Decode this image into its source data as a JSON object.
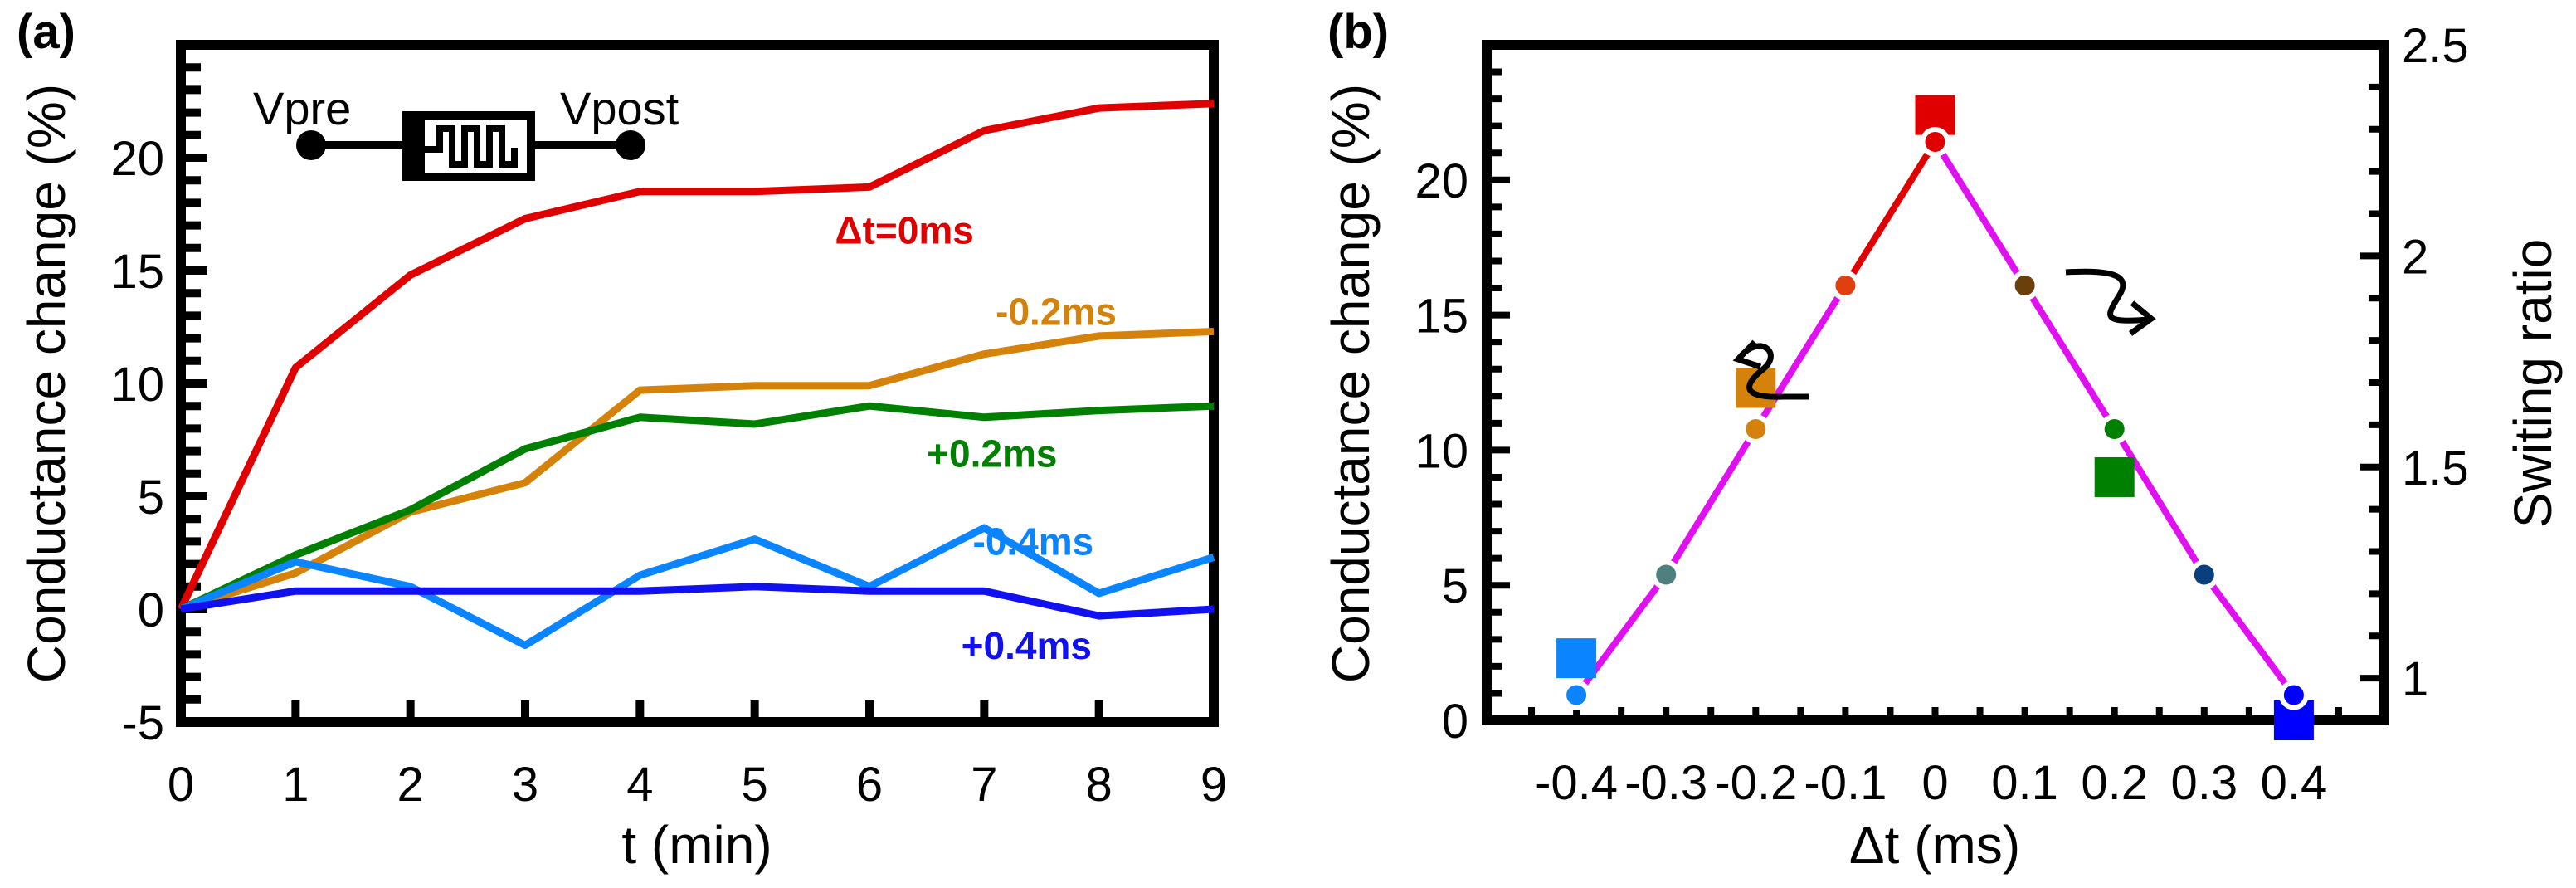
{
  "chart_data": [
    {
      "type": "line",
      "panel_label": "(a)",
      "xlabel": "t (min)",
      "ylabel": "Conductance change (%)",
      "xlim": [
        0,
        9
      ],
      "ylim": [
        -5,
        25
      ],
      "x_ticks": [
        "0",
        "1",
        "2",
        "3",
        "4",
        "5",
        "6",
        "7",
        "8",
        "9"
      ],
      "y_ticks": [
        "-5",
        "0",
        "5",
        "10",
        "15",
        "20"
      ],
      "x": [
        0,
        1,
        2,
        3,
        4,
        5,
        6,
        7,
        8,
        9
      ],
      "series": [
        {
          "name": "Δt=0ms",
          "color": "#e00000",
          "values": [
            0,
            10.7,
            14.8,
            17.3,
            18.5,
            18.5,
            18.7,
            21.2,
            22.2,
            22.4
          ],
          "label_pos": [
            5.7,
            16.2
          ]
        },
        {
          "name": "-0.2ms",
          "color": "#d4820a",
          "values": [
            0,
            1.6,
            4.3,
            5.6,
            9.7,
            9.9,
            9.9,
            11.3,
            12.1,
            12.3
          ],
          "label_pos": [
            7.1,
            12.6
          ]
        },
        {
          "name": "+0.2ms",
          "color": "#008000",
          "values": [
            0,
            2.4,
            4.4,
            7.1,
            8.5,
            8.2,
            9.0,
            8.5,
            8.8,
            9.0
          ],
          "label_pos": [
            6.5,
            6.3
          ]
        },
        {
          "name": "-0.4ms",
          "color": "#0a84ff",
          "values": [
            0,
            2.1,
            1.0,
            -1.6,
            1.5,
            3.1,
            1.0,
            3.6,
            0.7,
            2.3
          ],
          "label_pos": [
            6.9,
            2.4
          ]
        },
        {
          "name": "+0.4ms",
          "color": "#1010f0",
          "values": [
            0,
            0.8,
            0.8,
            0.8,
            0.8,
            1.0,
            0.8,
            0.8,
            -0.3,
            0
          ],
          "label_pos": [
            6.8,
            -2.2
          ]
        }
      ],
      "inset": {
        "left": "Vpre",
        "right": "Vpost",
        "icon": "memristor-symbol"
      }
    },
    {
      "type": "scatter",
      "panel_label": "(b)",
      "xlabel": "Δt (ms)",
      "ylabel": "Conductance change (%)",
      "y2label": "Switing ratio",
      "xlim": [
        -0.5,
        0.5
      ],
      "ylim": [
        0,
        25
      ],
      "y2lim": [
        0.9,
        2.5
      ],
      "x_ticks": [
        "-0.4",
        "-0.3",
        "-0.2",
        "-0.1",
        "0",
        "0.1",
        "0.2",
        "0.3",
        "0.4"
      ],
      "y_ticks": [
        "0",
        "5",
        "10",
        "15",
        "20"
      ],
      "y2_ticks": [
        "1",
        "1.5",
        "2",
        "2.5"
      ],
      "conductance_squares": {
        "x": [
          -0.4,
          -0.2,
          0,
          0.2,
          0.4
        ],
        "values": [
          2.3,
          12.3,
          22.4,
          9.0,
          0
        ],
        "colors": [
          "#0a84ff",
          "#d4820a",
          "#e00000",
          "#008000",
          "#0000ff"
        ]
      },
      "switching_ratio_circles": {
        "x": [
          -0.4,
          -0.3,
          -0.2,
          -0.1,
          0,
          0.1,
          0.2,
          0.3,
          0.4
        ],
        "values": [
          0.96,
          1.245,
          1.59,
          1.93,
          2.27,
          1.93,
          1.59,
          1.245,
          0.96
        ],
        "colors": [
          "#0a84ff",
          "#4f8080",
          "#d4820a",
          "#e04010",
          "#e00000",
          "#6b3f0a",
          "#008000",
          "#0a3f7f",
          "#0000ff"
        ],
        "line_color": "#e010f0",
        "highlight_segment_color": "#e00000"
      },
      "arrows": [
        {
          "points_to": "left-axis"
        },
        {
          "points_to": "right-axis"
        }
      ]
    }
  ]
}
